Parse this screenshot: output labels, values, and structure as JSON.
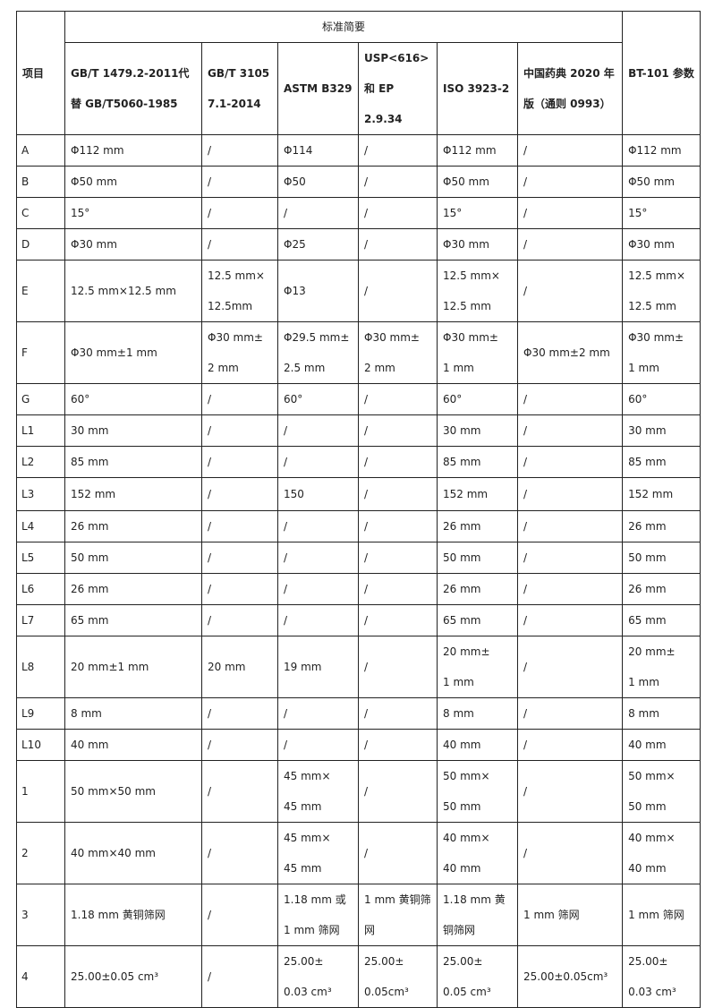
{
  "header": {
    "item_label": "项目",
    "group_label": "标准简要",
    "columns": [
      "GB/T 1479.2-2011代\n替 GB/T5060-1985",
      "GB/T 3105\n7.1-2014",
      "ASTM B329",
      "USP<616>\n和 EP 2.9.34",
      "ISO 3923-2",
      "中国药典 2020 年\n版（通则 0993）"
    ],
    "param_label": "BT-101 参数"
  },
  "rows": [
    {
      "item": "A",
      "cells": [
        "Φ112 mm",
        "/",
        "Φ114",
        "/",
        "Φ112 mm",
        "/",
        "Φ112 mm"
      ]
    },
    {
      "item": "B",
      "cells": [
        "Φ50 mm",
        "/",
        "Φ50",
        "/",
        "Φ50 mm",
        "/",
        "Φ50 mm"
      ]
    },
    {
      "item": "C",
      "cells": [
        "15°",
        "/",
        "/",
        "/",
        "15°",
        "/",
        "15°"
      ]
    },
    {
      "item": "D",
      "cells": [
        "Φ30 mm",
        "/",
        "Φ25",
        "/",
        "Φ30 mm",
        "/",
        "Φ30 mm"
      ]
    },
    {
      "item": "E",
      "cells": [
        "12.5 mm×12.5 mm",
        "12.5 mm×\n12.5mm",
        "Φ13",
        "/",
        "12.5 mm×\n12.5 mm",
        "/",
        "12.5 mm×\n12.5 mm"
      ]
    },
    {
      "item": "F",
      "cells": [
        "Φ30 mm±1 mm",
        "Φ30 mm±\n2 mm",
        "Φ29.5 mm±\n2.5 mm",
        "Φ30 mm±\n2 mm",
        "Φ30 mm±\n1 mm",
        "Φ30 mm±2 mm",
        "Φ30 mm±\n1 mm"
      ]
    },
    {
      "item": "G",
      "cells": [
        "60°",
        "/",
        "60°",
        "/",
        "60°",
        "/",
        "60°"
      ]
    },
    {
      "item": "L1",
      "cells": [
        "30 mm",
        "/",
        "/",
        "/",
        "30 mm",
        "/",
        "30 mm"
      ]
    },
    {
      "item": "L2",
      "cells": [
        "85 mm",
        "/",
        "/",
        "/",
        "85 mm",
        "/",
        "85 mm"
      ]
    },
    {
      "item": "L3",
      "cells": [
        "152 mm",
        "/",
        "150",
        "/",
        "152 mm",
        "/",
        "152 mm"
      ]
    },
    {
      "item": "L4",
      "cells": [
        "26 mm",
        "/",
        "/",
        "/",
        "26 mm",
        "/",
        "26 mm"
      ]
    },
    {
      "item": "L5",
      "cells": [
        "50 mm",
        "/",
        "/",
        "/",
        "50 mm",
        "/",
        "50 mm"
      ]
    },
    {
      "item": "L6",
      "cells": [
        "26 mm",
        "/",
        "/",
        "/",
        "26 mm",
        "/",
        "26 mm"
      ]
    },
    {
      "item": "L7",
      "cells": [
        "65 mm",
        "/",
        "/",
        "/",
        "65 mm",
        "/",
        "65 mm"
      ]
    },
    {
      "item": "L8",
      "cells": [
        "20 mm±1 mm",
        "20 mm",
        "19 mm",
        "/",
        "20 mm±\n1 mm",
        "/",
        "20 mm±\n1 mm"
      ]
    },
    {
      "item": "L9",
      "cells": [
        "8 mm",
        "/",
        "/",
        "/",
        "8 mm",
        "/",
        "8 mm"
      ]
    },
    {
      "item": "L10",
      "cells": [
        "40 mm",
        "/",
        "/",
        "/",
        "40 mm",
        "/",
        "40 mm"
      ]
    },
    {
      "item": "1",
      "cells": [
        "50 mm×50 mm",
        "/",
        "45 mm×\n45 mm",
        "/",
        "50 mm×\n50 mm",
        "/",
        "50 mm×\n50 mm"
      ]
    },
    {
      "item": "2",
      "cells": [
        "40 mm×40 mm",
        "/",
        "45 mm×\n45 mm",
        "/",
        "40 mm×\n40 mm",
        "/",
        "40 mm×\n40 mm"
      ]
    },
    {
      "item": "3",
      "cells": [
        "1.18 mm 黄铜筛网",
        "/",
        "1.18 mm 或\n1 mm 筛网",
        "1 mm 黄铜筛\n网",
        "1.18 mm 黄\n铜筛网",
        "1 mm 筛网",
        "1 mm 筛网"
      ]
    },
    {
      "item": "4",
      "cells": [
        "25.00±0.05 cm³",
        "/",
        "25.00±\n0.03 cm³",
        "25.00±\n0.05cm³",
        "25.00±\n0.05 cm³",
        "25.00±0.05cm³",
        "25.00±\n0.03 cm³"
      ]
    }
  ]
}
